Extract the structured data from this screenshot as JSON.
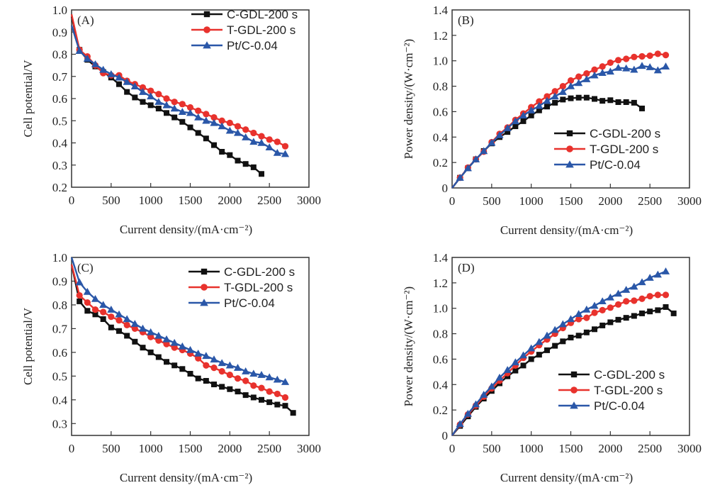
{
  "series_styles": [
    {
      "name": "C-GDL-200 s",
      "color": "#111111",
      "marker": "square"
    },
    {
      "name": "T-GDL-200 s",
      "color": "#e8322d",
      "marker": "circle"
    },
    {
      "name": "Pt/C-0.04",
      "color": "#2a57a8",
      "marker": "triangle"
    }
  ],
  "chart_data": [
    {
      "panel": "(A)",
      "type": "line",
      "xlabel": "Current density/(mA·cm⁻²)",
      "ylabel": "Cell potential/V",
      "xlim": [
        0,
        3000
      ],
      "ylim": [
        0.2,
        1.0
      ],
      "xticks": [
        0,
        500,
        1000,
        1500,
        2000,
        2500,
        3000
      ],
      "yticks": [
        0.2,
        0.3,
        0.4,
        0.5,
        0.6,
        0.7,
        0.8,
        0.9,
        1.0
      ],
      "ytick_labels": [
        "0.2",
        "0.3",
        "0.4",
        "0.5",
        "0.6",
        "0.7",
        "0.8",
        "0.9",
        "1.0"
      ],
      "legend": "top-right",
      "series": [
        {
          "name": "C-GDL-200 s",
          "x": [
            0,
            100,
            200,
            300,
            400,
            500,
            600,
            700,
            800,
            900,
            1000,
            1100,
            1200,
            1300,
            1400,
            1500,
            1600,
            1700,
            1800,
            1900,
            2000,
            2100,
            2200,
            2300,
            2400
          ],
          "y": [
            0.97,
            0.82,
            0.775,
            0.745,
            0.72,
            0.695,
            0.665,
            0.63,
            0.605,
            0.585,
            0.57,
            0.555,
            0.535,
            0.515,
            0.495,
            0.47,
            0.445,
            0.42,
            0.39,
            0.36,
            0.345,
            0.32,
            0.305,
            0.29,
            0.26
          ]
        },
        {
          "name": "T-GDL-200 s",
          "x": [
            0,
            100,
            200,
            300,
            400,
            500,
            600,
            700,
            800,
            900,
            1000,
            1100,
            1200,
            1300,
            1400,
            1500,
            1600,
            1700,
            1800,
            1900,
            2000,
            2100,
            2200,
            2300,
            2400,
            2500,
            2600,
            2700
          ],
          "y": [
            0.98,
            0.82,
            0.79,
            0.75,
            0.715,
            0.705,
            0.705,
            0.68,
            0.665,
            0.65,
            0.635,
            0.62,
            0.6,
            0.585,
            0.575,
            0.56,
            0.545,
            0.53,
            0.515,
            0.5,
            0.49,
            0.475,
            0.46,
            0.445,
            0.43,
            0.415,
            0.405,
            0.385
          ]
        },
        {
          "name": "Pt/C-0.04",
          "x": [
            0,
            100,
            200,
            300,
            400,
            500,
            600,
            700,
            800,
            900,
            1000,
            1100,
            1200,
            1300,
            1400,
            1500,
            1600,
            1700,
            1800,
            1900,
            2000,
            2100,
            2200,
            2300,
            2400,
            2500,
            2600,
            2700
          ],
          "y": [
            0.93,
            0.815,
            0.78,
            0.755,
            0.73,
            0.71,
            0.695,
            0.675,
            0.655,
            0.63,
            0.61,
            0.585,
            0.57,
            0.555,
            0.54,
            0.535,
            0.515,
            0.5,
            0.49,
            0.475,
            0.455,
            0.445,
            0.425,
            0.405,
            0.4,
            0.38,
            0.355,
            0.35
          ]
        }
      ]
    },
    {
      "panel": "(B)",
      "type": "line",
      "xlabel": "Current density/(mA·cm⁻²)",
      "ylabel": "Power density/(W·cm⁻²)",
      "xlim": [
        0,
        3000
      ],
      "ylim": [
        0,
        1.4
      ],
      "xticks": [
        0,
        500,
        1000,
        1500,
        2000,
        2500,
        3000
      ],
      "yticks": [
        0,
        0.2,
        0.4,
        0.6,
        0.8,
        1.0,
        1.2,
        1.4
      ],
      "ytick_labels": [
        "0",
        "0.2",
        "0.4",
        "0.6",
        "0.8",
        "1.0",
        "1.2",
        "1.4"
      ],
      "legend": "lower-right",
      "series": [
        {
          "name": "C-GDL-200 s",
          "x": [
            0,
            100,
            200,
            300,
            400,
            500,
            600,
            700,
            800,
            900,
            1000,
            1100,
            1200,
            1300,
            1400,
            1500,
            1600,
            1700,
            1800,
            1900,
            2000,
            2100,
            2200,
            2300,
            2400
          ],
          "y": [
            0,
            0.08,
            0.155,
            0.225,
            0.29,
            0.35,
            0.4,
            0.44,
            0.485,
            0.525,
            0.57,
            0.61,
            0.64,
            0.67,
            0.695,
            0.705,
            0.71,
            0.71,
            0.7,
            0.685,
            0.69,
            0.675,
            0.675,
            0.67,
            0.625
          ]
        },
        {
          "name": "T-GDL-200 s",
          "x": [
            0,
            100,
            200,
            300,
            400,
            500,
            600,
            700,
            800,
            900,
            1000,
            1100,
            1200,
            1300,
            1400,
            1500,
            1600,
            1700,
            1800,
            1900,
            2000,
            2100,
            2200,
            2300,
            2400,
            2500,
            2600,
            2700
          ],
          "y": [
            0,
            0.08,
            0.16,
            0.225,
            0.285,
            0.36,
            0.425,
            0.475,
            0.535,
            0.585,
            0.635,
            0.68,
            0.72,
            0.76,
            0.8,
            0.845,
            0.875,
            0.9,
            0.93,
            0.955,
            0.985,
            1.005,
            1.015,
            1.03,
            1.035,
            1.04,
            1.055,
            1.045
          ]
        },
        {
          "name": "Pt/C-0.04",
          "x": [
            0,
            100,
            200,
            300,
            400,
            500,
            600,
            700,
            800,
            900,
            1000,
            1100,
            1200,
            1300,
            1400,
            1500,
            1600,
            1700,
            1800,
            1900,
            2000,
            2100,
            2200,
            2300,
            2400,
            2500,
            2600,
            2700
          ],
          "y": [
            0,
            0.08,
            0.155,
            0.225,
            0.29,
            0.355,
            0.415,
            0.47,
            0.525,
            0.57,
            0.61,
            0.645,
            0.685,
            0.72,
            0.755,
            0.8,
            0.825,
            0.855,
            0.885,
            0.905,
            0.915,
            0.945,
            0.94,
            0.93,
            0.96,
            0.95,
            0.925,
            0.955
          ]
        }
      ]
    },
    {
      "panel": "(C)",
      "type": "line",
      "xlabel": "Current density/(mA·cm⁻²)",
      "ylabel": "Cell potential/V",
      "xlim": [
        0,
        3000
      ],
      "ylim": [
        0.25,
        1.0
      ],
      "xticks": [
        0,
        500,
        1000,
        1500,
        2000,
        2500,
        3000
      ],
      "yticks": [
        0.3,
        0.4,
        0.5,
        0.6,
        0.7,
        0.8,
        0.9,
        1.0
      ],
      "ytick_labels": [
        "0.3",
        "0.4",
        "0.5",
        "0.6",
        "0.7",
        "0.8",
        "0.9",
        "1.0"
      ],
      "legend": "top-right",
      "series": [
        {
          "name": "C-GDL-200 s",
          "x": [
            0,
            100,
            200,
            300,
            400,
            500,
            600,
            700,
            800,
            900,
            1000,
            1100,
            1200,
            1300,
            1400,
            1500,
            1600,
            1700,
            1800,
            1900,
            2000,
            2100,
            2200,
            2300,
            2400,
            2500,
            2600,
            2700,
            2800
          ],
          "y": [
            0.97,
            0.815,
            0.775,
            0.76,
            0.74,
            0.705,
            0.69,
            0.67,
            0.645,
            0.62,
            0.6,
            0.58,
            0.56,
            0.545,
            0.53,
            0.51,
            0.49,
            0.48,
            0.465,
            0.455,
            0.445,
            0.435,
            0.42,
            0.41,
            0.4,
            0.39,
            0.38,
            0.375,
            0.345
          ]
        },
        {
          "name": "T-GDL-200 s",
          "x": [
            0,
            100,
            200,
            300,
            400,
            500,
            600,
            700,
            800,
            900,
            1000,
            1100,
            1200,
            1300,
            1400,
            1500,
            1600,
            1700,
            1800,
            1900,
            2000,
            2100,
            2200,
            2300,
            2400,
            2500,
            2600,
            2700
          ],
          "y": [
            0.97,
            0.84,
            0.81,
            0.78,
            0.77,
            0.75,
            0.735,
            0.715,
            0.7,
            0.685,
            0.665,
            0.65,
            0.635,
            0.62,
            0.61,
            0.595,
            0.575,
            0.545,
            0.535,
            0.52,
            0.505,
            0.49,
            0.48,
            0.46,
            0.45,
            0.435,
            0.425,
            0.41
          ]
        },
        {
          "name": "Pt/C-0.04",
          "x": [
            0,
            100,
            200,
            300,
            400,
            500,
            600,
            700,
            800,
            900,
            1000,
            1100,
            1200,
            1300,
            1400,
            1500,
            1600,
            1700,
            1800,
            1900,
            2000,
            2100,
            2200,
            2300,
            2400,
            2500,
            2600,
            2700
          ],
          "y": [
            1.0,
            0.895,
            0.855,
            0.825,
            0.8,
            0.78,
            0.76,
            0.74,
            0.72,
            0.7,
            0.685,
            0.67,
            0.655,
            0.64,
            0.625,
            0.61,
            0.595,
            0.585,
            0.57,
            0.555,
            0.545,
            0.535,
            0.52,
            0.51,
            0.505,
            0.495,
            0.485,
            0.475
          ]
        }
      ]
    },
    {
      "panel": "(D)",
      "type": "line",
      "xlabel": "Current density/(mA·cm⁻²)",
      "ylabel": "Power density/(W·cm⁻²)",
      "xlim": [
        0,
        3000
      ],
      "ylim": [
        0,
        1.4
      ],
      "xticks": [
        0,
        500,
        1000,
        1500,
        2000,
        2500,
        3000
      ],
      "yticks": [
        0,
        0.2,
        0.4,
        0.6,
        0.8,
        1.0,
        1.2,
        1.4
      ],
      "ytick_labels": [
        "0",
        "0.2",
        "0.4",
        "0.6",
        "0.8",
        "1.0",
        "1.2",
        "1.4"
      ],
      "legend": "lower-right",
      "series": [
        {
          "name": "C-GDL-200 s",
          "x": [
            0,
            100,
            200,
            300,
            400,
            500,
            600,
            700,
            800,
            900,
            1000,
            1100,
            1200,
            1300,
            1400,
            1500,
            1600,
            1700,
            1800,
            1900,
            2000,
            2100,
            2200,
            2300,
            2400,
            2500,
            2600,
            2700,
            2800
          ],
          "y": [
            0,
            0.075,
            0.15,
            0.225,
            0.29,
            0.35,
            0.41,
            0.465,
            0.51,
            0.55,
            0.6,
            0.635,
            0.67,
            0.705,
            0.74,
            0.77,
            0.785,
            0.81,
            0.835,
            0.865,
            0.89,
            0.91,
            0.925,
            0.94,
            0.96,
            0.975,
            0.985,
            1.01,
            0.96
          ]
        },
        {
          "name": "T-GDL-200 s",
          "x": [
            0,
            100,
            200,
            300,
            400,
            500,
            600,
            700,
            800,
            900,
            1000,
            1100,
            1200,
            1300,
            1400,
            1500,
            1600,
            1700,
            1800,
            1900,
            2000,
            2100,
            2200,
            2300,
            2400,
            2500,
            2600,
            2700
          ],
          "y": [
            0,
            0.085,
            0.165,
            0.235,
            0.305,
            0.37,
            0.43,
            0.49,
            0.55,
            0.61,
            0.66,
            0.71,
            0.755,
            0.8,
            0.845,
            0.885,
            0.915,
            0.925,
            0.965,
            0.985,
            1.005,
            1.03,
            1.055,
            1.06,
            1.075,
            1.095,
            1.105,
            1.105
          ]
        },
        {
          "name": "Pt/C-0.04",
          "x": [
            0,
            100,
            200,
            300,
            400,
            500,
            600,
            700,
            800,
            900,
            1000,
            1100,
            1200,
            1300,
            1400,
            1500,
            1600,
            1700,
            1800,
            1900,
            2000,
            2100,
            2200,
            2300,
            2400,
            2500,
            2600,
            2700
          ],
          "y": [
            0,
            0.09,
            0.17,
            0.245,
            0.32,
            0.385,
            0.455,
            0.515,
            0.575,
            0.63,
            0.685,
            0.735,
            0.785,
            0.83,
            0.875,
            0.915,
            0.955,
            0.99,
            1.02,
            1.055,
            1.085,
            1.115,
            1.145,
            1.17,
            1.205,
            1.24,
            1.265,
            1.29
          ]
        }
      ]
    }
  ]
}
